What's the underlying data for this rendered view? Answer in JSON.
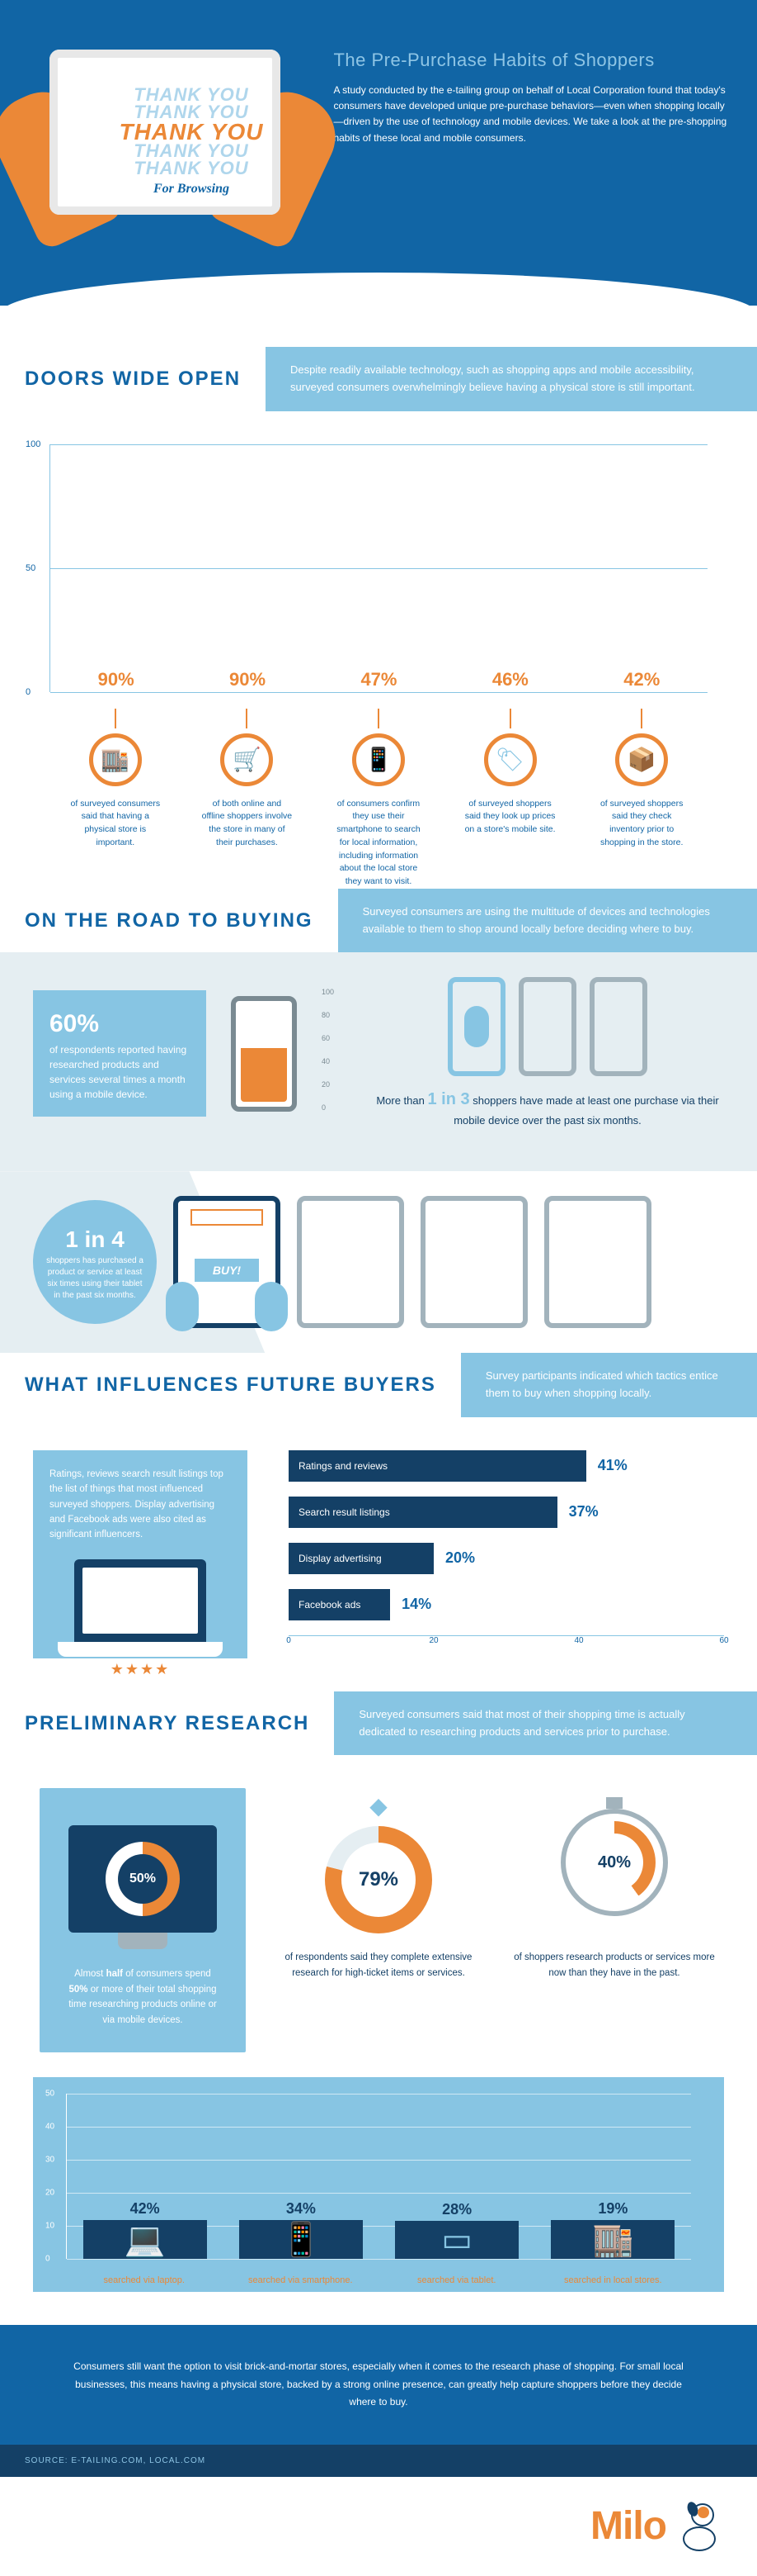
{
  "header": {
    "thank_lines": [
      "THANK YOU",
      "THANK YOU",
      "THANK YOU",
      "THANK YOU",
      "THANK YOU"
    ],
    "subtitle": "For Browsing",
    "title": "The Pre-Purchase Habits of Shoppers",
    "body": "A study conducted by the e-tailing group on behalf of Local Corporation found that today's consumers have developed unique pre-purchase behaviors—even when shopping locally—driven by the use of technology and mobile devices. We take a look at the pre-shopping habits of these local and mobile consumers."
  },
  "doors": {
    "title": "DOORS WIDE OPEN",
    "desc": "Despite readily available technology, such as shopping apps and mobile accessibility, surveyed consumers overwhelmingly believe having a physical store is still important.",
    "ylim": [
      0,
      100
    ],
    "yticks": [
      0,
      50,
      100
    ],
    "bar_color": "#144066",
    "label_color": "#eb8837",
    "grid_color": "#87c5e3",
    "bars": [
      {
        "value": 90,
        "label": "90%",
        "icon": "storefront",
        "caption": "of surveyed consumers said that having a physical store is important."
      },
      {
        "value": 90,
        "label": "90%",
        "icon": "cart",
        "caption": "of both online and offline shoppers involve the store in many of their purchases."
      },
      {
        "value": 47,
        "label": "47%",
        "icon": "phone",
        "caption": "of consumers confirm they use their smartphone to search for local information, including information about the local store they want to visit."
      },
      {
        "value": 46,
        "label": "46%",
        "icon": "tag",
        "caption": "of surveyed shoppers said they look up prices on a store's mobile site."
      },
      {
        "value": 42,
        "label": "42%",
        "icon": "boxes",
        "caption": "of surveyed shoppers said they check inventory prior to shopping in the store."
      }
    ]
  },
  "road": {
    "title": "ON THE ROAD TO BUYING",
    "desc": "Surveyed consumers are using the multitude of devices and technologies available to them to shop around locally before deciding where to buy.",
    "flag_pct": "60%",
    "flag_text": "of respondents reported having researched products and services several times a month using a mobile device.",
    "phone_fill_pct": 60,
    "phone_scale": [
      0,
      20,
      40,
      60,
      80,
      100
    ],
    "phone_row_text_pre": "More than ",
    "phone_row_em": "1 in 3",
    "phone_row_text_post": " shoppers have made at least one purchase via their mobile device over the past six months.",
    "tablet_stat_em": "1 in 4",
    "tablet_stat_text": "shoppers has purchased a product or service at least six times using their tablet in the past six months.",
    "buy_label": "BUY!"
  },
  "influence": {
    "title": "WHAT INFLUENCES FUTURE BUYERS",
    "desc": "Survey participants indicated which tactics entice them to buy when shopping locally.",
    "side_text": "Ratings, reviews search result listings top the list of things that most influenced surveyed shoppers. Display advertising and Facebook ads were also cited as significant influencers.",
    "xlim": [
      0,
      60
    ],
    "xticks": [
      0,
      20,
      40,
      60
    ],
    "bar_color": "#144066",
    "bars": [
      {
        "name": "Ratings and reviews",
        "value": 41,
        "label": "41%"
      },
      {
        "name": "Search result listings",
        "value": 37,
        "label": "37%"
      },
      {
        "name": "Display advertising",
        "value": 20,
        "label": "20%"
      },
      {
        "name": "Facebook ads",
        "value": 14,
        "label": "14%"
      }
    ]
  },
  "prelim": {
    "title": "PRELIMINARY RESEARCH",
    "desc": "Surveyed consumers said that most of their shopping time is actually dedicated to researching products and services prior to purchase.",
    "cards": [
      {
        "pct": "50%",
        "pct_val": 50,
        "accent": "#eb8837",
        "text_pre": "Almost ",
        "text_bold": "half",
        "text_mid": " of consumers spend ",
        "text_bold2": "50%",
        "text_post": " or more of their total shopping time researching products online or via mobile devices."
      },
      {
        "pct": "79%",
        "pct_val": 79,
        "accent": "#eb8837",
        "icon": "diamond",
        "text": "of respondents said they complete extensive research for high-ticket items or services."
      },
      {
        "pct": "40%",
        "pct_val": 40,
        "accent": "#eb8837",
        "icon": "timer",
        "text": "of shoppers research products or services more now than they have in the past."
      }
    ],
    "chart": {
      "ylim": [
        0,
        50
      ],
      "yticks": [
        0,
        10,
        20,
        30,
        40,
        50
      ],
      "bar_color": "#144066",
      "bg": "#87c5e3",
      "caption_color": "#eb8837",
      "bars": [
        {
          "value": 42,
          "label": "42%",
          "icon": "laptop",
          "caption": "searched via laptop."
        },
        {
          "value": 34,
          "label": "34%",
          "icon": "smartphone",
          "caption": "searched via smartphone."
        },
        {
          "value": 28,
          "label": "28%",
          "icon": "tablet",
          "caption": "searched via tablet."
        },
        {
          "value": 19,
          "label": "19%",
          "icon": "store",
          "caption": "searched in local stores."
        }
      ]
    }
  },
  "footer": {
    "text": "Consumers still want the option to visit brick-and-mortar stores, especially when it comes to the research phase of shopping. For small local businesses, this means having a physical store, backed by a strong online presence, can greatly help capture shoppers before they decide where to buy.",
    "source": "SOURCE: E-TAILING.COM, LOCAL.COM",
    "logo": "Milo"
  },
  "colors": {
    "primary": "#1165a5",
    "dark": "#144066",
    "light": "#87c5e3",
    "accent": "#eb8837",
    "gray": "#a2b3bc",
    "pale": "#e5eef2"
  }
}
